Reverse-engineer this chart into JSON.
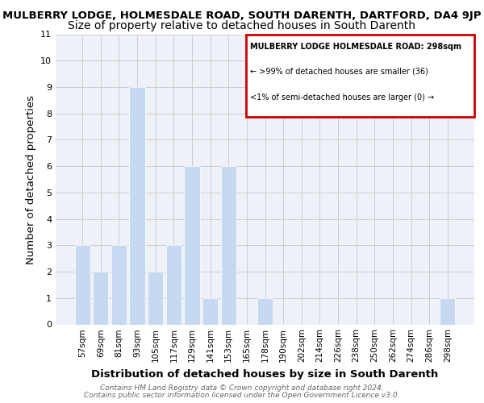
{
  "title_line1": "MULBERRY LODGE, HOLMESDALE ROAD, SOUTH DARENTH, DARTFORD, DA4 9JP",
  "title_line2": "Size of property relative to detached houses in South Darenth",
  "xlabel": "Distribution of detached houses by size in South Darenth",
  "ylabel": "Number of detached properties",
  "categories": [
    "57sqm",
    "69sqm",
    "81sqm",
    "93sqm",
    "105sqm",
    "117sqm",
    "129sqm",
    "141sqm",
    "153sqm",
    "165sqm",
    "178sqm",
    "190sqm",
    "202sqm",
    "214sqm",
    "226sqm",
    "238sqm",
    "250sqm",
    "262sqm",
    "274sqm",
    "286sqm",
    "298sqm"
  ],
  "values": [
    3,
    2,
    3,
    9,
    2,
    3,
    6,
    1,
    6,
    0,
    1,
    0,
    0,
    0,
    0,
    0,
    0,
    0,
    0,
    0,
    1
  ],
  "bar_color": "#c6d9f0",
  "ylim": [
    0,
    11
  ],
  "yticks": [
    0,
    1,
    2,
    3,
    4,
    5,
    6,
    7,
    8,
    9,
    10,
    11
  ],
  "legend_title": "MULBERRY LODGE HOLMESDALE ROAD: 298sqm",
  "legend_line1": "← >99% of detached houses are smaller (36)",
  "legend_line2": "<1% of semi-detached houses are larger (0) →",
  "legend_box_color": "#cc0000",
  "footer_line1": "Contains HM Land Registry data © Crown copyright and database right 2024.",
  "footer_line2": "Contains public sector information licensed under the Open Government Licence v3.0.",
  "bg_color": "#eef2f8",
  "grid_color": "#cccccc",
  "title_fontsize": 9.5,
  "subtitle_fontsize": 10,
  "axis_label_fontsize": 9.5,
  "tick_fontsize": 7.5,
  "footer_fontsize": 6.5
}
